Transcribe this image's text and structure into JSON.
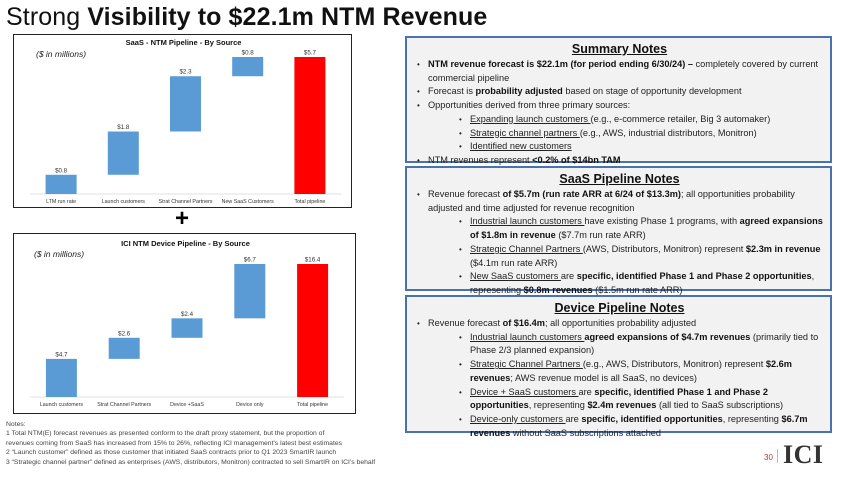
{
  "page": {
    "title_light": "Strong ",
    "title_bold": "Visibility to $22.1m NTM Revenue",
    "plus_sign": "+",
    "page_number": "30",
    "logo_text": "ICI"
  },
  "chart_data": [
    {
      "type": "bar",
      "subtype": "waterfall",
      "title": "SaaS - NTM Pipeline - By Source",
      "annotation": "($ in millions)",
      "categories": [
        "LTM run rate",
        "Launch customers",
        "Strat Channel Partners",
        "New SaaS Customers",
        "Total pipeline"
      ],
      "values": [
        0.8,
        1.8,
        2.3,
        0.8,
        5.7
      ],
      "data_labels": [
        "$0.8",
        "$1.8",
        "$2.3",
        "$0.8",
        "$5.7"
      ],
      "is_total": [
        false,
        false,
        false,
        false,
        true
      ],
      "colors": {
        "increment": "#5b9bd5",
        "total": "#ff0000"
      },
      "xlabel": "",
      "ylabel": "",
      "ylim": [
        0,
        5.7
      ],
      "grid": false
    },
    {
      "type": "bar",
      "subtype": "waterfall",
      "title": "ICI NTM Device Pipeline - By Source",
      "annotation": "($ in millions)",
      "categories": [
        "Launch customers",
        "Strat Channel Partners",
        "Device +SaaS",
        "Device only",
        "Total pipeline"
      ],
      "values": [
        4.7,
        2.6,
        2.4,
        6.7,
        16.4
      ],
      "data_labels": [
        "$4.7",
        "$2.6",
        "$2.4",
        "$6.7",
        "$16.4"
      ],
      "is_total": [
        false,
        false,
        false,
        false,
        true
      ],
      "colors": {
        "increment": "#5b9bd5",
        "total": "#ff0000"
      },
      "xlabel": "",
      "ylabel": "",
      "ylim": [
        0,
        16.4
      ],
      "grid": false
    }
  ],
  "summary": {
    "title": "Summary Notes",
    "b1_bold": "NTM revenue forecast is $22.1m (for period ending 6/30/24) –",
    "b1_rest": " completely covered by current commercial pipeline",
    "b2_pre": "Forecast is ",
    "b2_bold": "probability adjusted",
    "b2_rest": " based on stage of opportunity development",
    "b3": "Opportunities derived from three primary sources:",
    "s1_u": "Expanding launch customers ",
    "s1_rest": "(e.g., e-commerce retailer, Big 3 automaker)",
    "s2_u": "Strategic channel partners ",
    "s2_rest": "(e.g., AWS, industrial distributors, Monitron)",
    "s3_u": "Identified new customers",
    "b4_pre": "NTM revenues represent ",
    "b4_bold": "<0.2% of $14bn TAM"
  },
  "saas_notes": {
    "title": "SaaS Pipeline Notes",
    "b1_pre": "Revenue forecast ",
    "b1_bold": "of $5.7m (run rate ARR at 6/24 of $13.3m)",
    "b1_rest": "; all opportunities probability adjusted and time adjusted for revenue recognition",
    "s1_u": "Industrial launch customers ",
    "s1_mid": "have existing Phase 1 programs, with ",
    "s1_bold": "agreed expansions of $1.8m in revenue",
    "s1_rest": " ($7.7m run rate ARR)",
    "s2_u": "Strategic Channel Partners ",
    "s2_mid": "(AWS, Distributors, Monitron) represent ",
    "s2_bold": "$2.3m in revenue",
    "s2_rest": " ($4.1m run rate ARR)",
    "s3_u": "New SaaS customers ",
    "s3_mid": "are ",
    "s3_bold": "specific, identified Phase 1 and Phase 2 opportunities",
    "s3_mid2": ", representing ",
    "s3_bold2": "$0.8m revenues",
    "s3_rest": " ($1.5m run rate ARR)"
  },
  "device_notes": {
    "title": "Device Pipeline Notes",
    "b1_pre": "Revenue forecast ",
    "b1_bold": "of $16.4m",
    "b1_rest": "; all opportunities probability adjusted",
    "s1_u": "Industrial launch customers ",
    "s1_bold": "agreed expansions of $4.7m revenues",
    "s1_rest": " (primarily tied to Phase 2/3 planned expansion)",
    "s2_u": "Strategic Channel Partners ",
    "s2_mid": "(e.g., AWS, Distributors, Monitron) represent ",
    "s2_bold": "$2.6m revenues",
    "s2_rest": "; AWS revenue model is all SaaS, no devices)",
    "s3_u": "Device + SaaS customers ",
    "s3_mid": "are ",
    "s3_bold": "specific, identified Phase 1 and Phase 2 opportunities",
    "s3_mid2": ", representing ",
    "s3_bold2": "$2.4m revenues",
    "s3_rest": " (all tied to SaaS subscriptions)",
    "s4_u": "Device-only customers ",
    "s4_mid": "are ",
    "s4_bold": "specific, identified opportunities",
    "s4_mid2": ", representing ",
    "s4_bold2": "$6.7m revenues",
    "s4_rest": " without SaaS subscriptions attached"
  },
  "footnotes": {
    "heading": "Notes:",
    "n1a": "1 Total NTM(E) forecast revenues as presented conform to the draft proxy statement, but the proportion of",
    "n1b": "revenues coming from SaaS has increased from 15% to 26%, reflecting ICI management's latest best estimates",
    "n2": "2 “Launch customer” defined as those customer that initiated SaaS contracts prior to Q1 2023 SmartIR launch",
    "n3": "3 “Strategic channel partner” defined as enterprises (AWS, distributors, Monitron) contracted to sell SmartIR on ICI’s behalf"
  }
}
